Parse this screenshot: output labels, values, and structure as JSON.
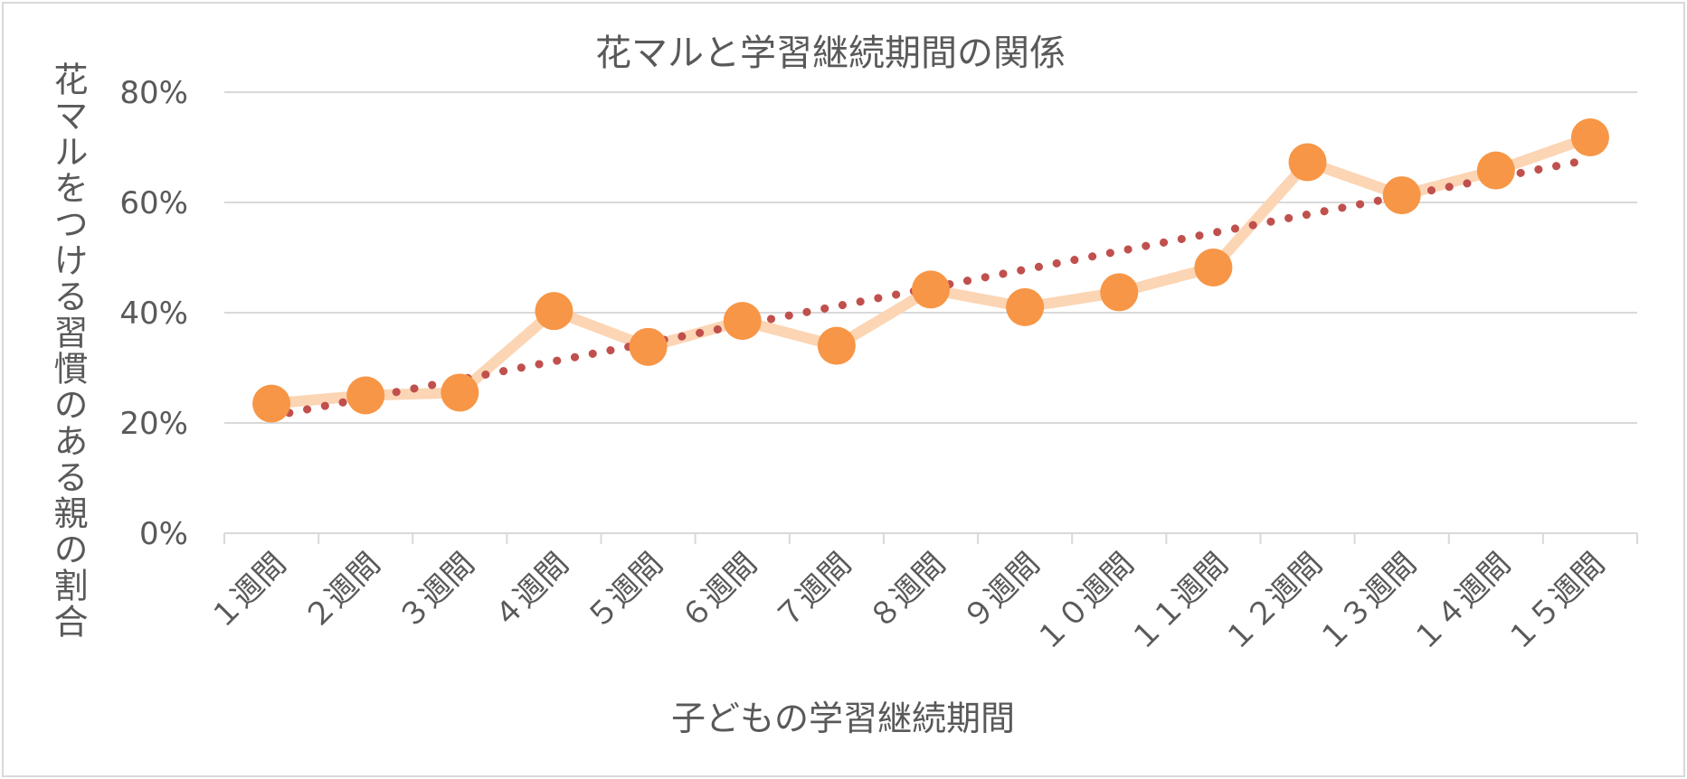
{
  "chart_data": {
    "type": "line",
    "title": "花マルと学習継続期間の関係",
    "xlabel": "子どもの学習継続期間",
    "ylabel": "花マルをつける習慣のある親の割合",
    "categories": [
      "１週間",
      "２週間",
      "３週間",
      "４週間",
      "５週間",
      "６週間",
      "７週間",
      "８週間",
      "９週間",
      "１０週間",
      "１１週間",
      "１２週間",
      "１３週間",
      "１４週間",
      "１５週間"
    ],
    "series": [
      {
        "values": [
          0.235,
          0.25,
          0.255,
          0.403,
          0.338,
          0.385,
          0.34,
          0.442,
          0.41,
          0.437,
          0.482,
          0.673,
          0.613,
          0.658,
          0.718
        ]
      }
    ],
    "trendline": {
      "type": "linear",
      "start": 0.212,
      "end": 0.678
    },
    "y_ticks": [
      "0%",
      "20%",
      "40%",
      "60%",
      "80%"
    ],
    "ylim": [
      0,
      0.8
    ],
    "grid": true,
    "legend": "none",
    "colors": {
      "line": "#fcd5b4",
      "marker": "#f79646",
      "trend": "#c0504d",
      "grid": "#d9d9d9",
      "text": "#595959"
    }
  }
}
